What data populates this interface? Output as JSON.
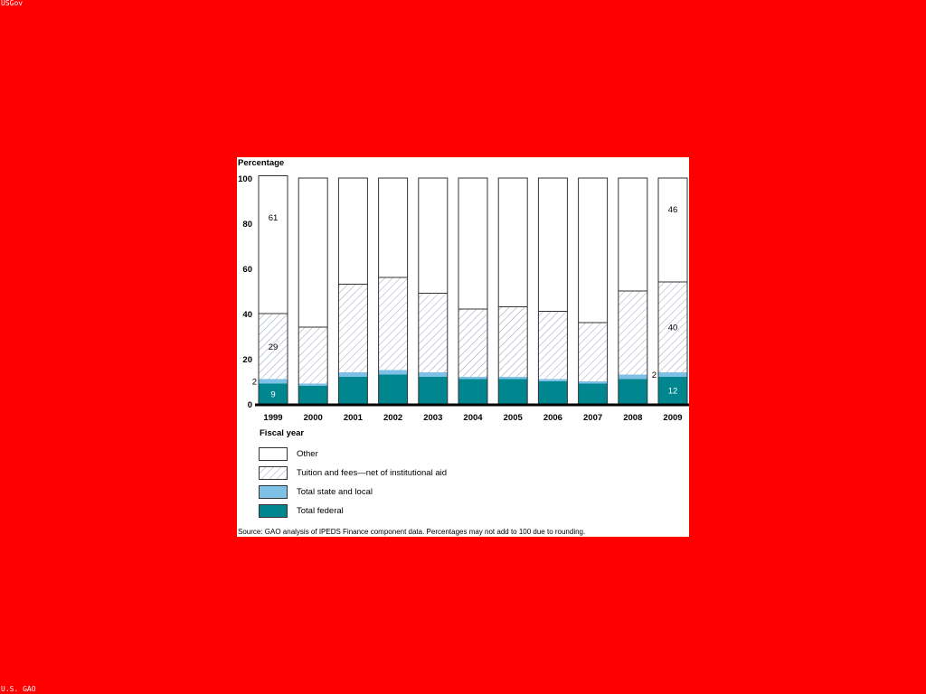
{
  "corner_labels": {
    "top_left": "USGov",
    "bottom_left": "U.S. GAO"
  },
  "colors": {
    "background": "#ff0000",
    "federal": "#00868f",
    "state_local": "#7fc1e6",
    "tuition_hatch": "#7a8aa8",
    "other": "#ffffff"
  },
  "chart_data": {
    "type": "bar",
    "stacked": true,
    "ylabel": "Percentage",
    "xlabel": "Fiscal year",
    "ylim": [
      0,
      100
    ],
    "yticks": [
      "0",
      "20",
      "40",
      "60",
      "80",
      "100"
    ],
    "categories": [
      "1999",
      "2000",
      "2001",
      "2002",
      "2003",
      "2004",
      "2005",
      "2006",
      "2007",
      "2008",
      "2009"
    ],
    "series": [
      {
        "name": "Total federal",
        "values": [
          9,
          8,
          12,
          13,
          12,
          11,
          11,
          10,
          9,
          11,
          12
        ]
      },
      {
        "name": "Total state and local",
        "values": [
          2,
          1,
          2,
          2,
          2,
          1,
          1,
          1,
          1,
          2,
          2
        ]
      },
      {
        "name": "Tuition and fees—net of institutional aid",
        "values": [
          29,
          25,
          39,
          41,
          35,
          30,
          31,
          30,
          26,
          37,
          40
        ]
      },
      {
        "name": "Other",
        "values": [
          61,
          66,
          47,
          44,
          51,
          58,
          57,
          59,
          64,
          50,
          46
        ]
      }
    ],
    "data_labels": [
      {
        "category": "1999",
        "series": "Total federal",
        "text": "9"
      },
      {
        "category": "1999",
        "series": "Total state and local",
        "text": "2"
      },
      {
        "category": "1999",
        "series": "Tuition and fees—net of institutional aid",
        "text": "29"
      },
      {
        "category": "1999",
        "series": "Other",
        "text": "61"
      },
      {
        "category": "2009",
        "series": "Total federal",
        "text": "12"
      },
      {
        "category": "2009",
        "series": "Total state and local",
        "text": "2"
      },
      {
        "category": "2009",
        "series": "Tuition and fees—net of institutional aid",
        "text": "40"
      },
      {
        "category": "2009",
        "series": "Other",
        "text": "46"
      }
    ],
    "legend": {
      "position": "bottom",
      "items": [
        "Other",
        "Tuition and fees—net of institutional aid",
        "Total state and local",
        "Total federal"
      ]
    }
  },
  "source_note": "Source: GAO analysis of IPEDS Finance component data. Percentages may not add to 100 due to rounding."
}
